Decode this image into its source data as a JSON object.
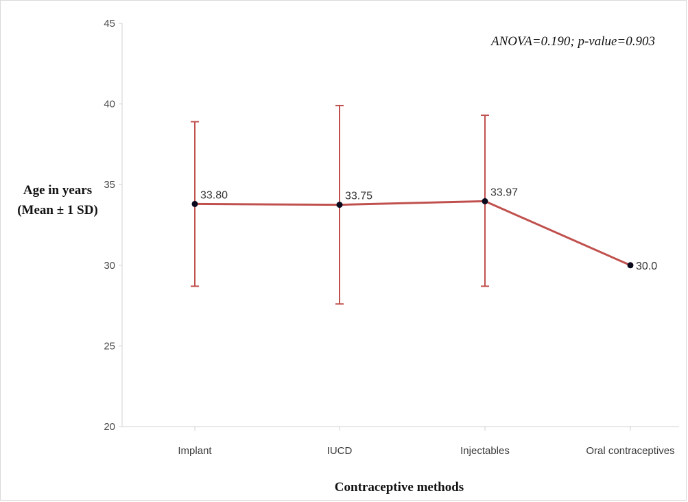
{
  "chart_data": {
    "type": "line",
    "categories": [
      "Implant",
      "IUCD",
      "Injectables",
      "Oral contraceptives"
    ],
    "series": [
      {
        "values": [
          33.8,
          33.75,
          33.97,
          30.0
        ],
        "data_labels": [
          "33.80",
          "33.75",
          "33.97",
          "30.0"
        ],
        "error_low": [
          28.7,
          27.6,
          28.7,
          null
        ],
        "error_high": [
          38.9,
          39.9,
          39.3,
          null
        ]
      }
    ],
    "xlabel": "Contraceptive methods",
    "ylabel_lines": [
      "Age in years",
      "(Mean ± 1 SD)"
    ],
    "ylim": [
      20,
      45
    ],
    "yticks": [
      20,
      25,
      30,
      35,
      40,
      45
    ],
    "annotation": "ANOVA=0.190; p-value=0.903",
    "grid": false,
    "colors": {
      "line": "#c0504d",
      "error_bar": "#c0504d",
      "marker": "#0a0a1e",
      "axis": "#d0d0d0"
    }
  }
}
